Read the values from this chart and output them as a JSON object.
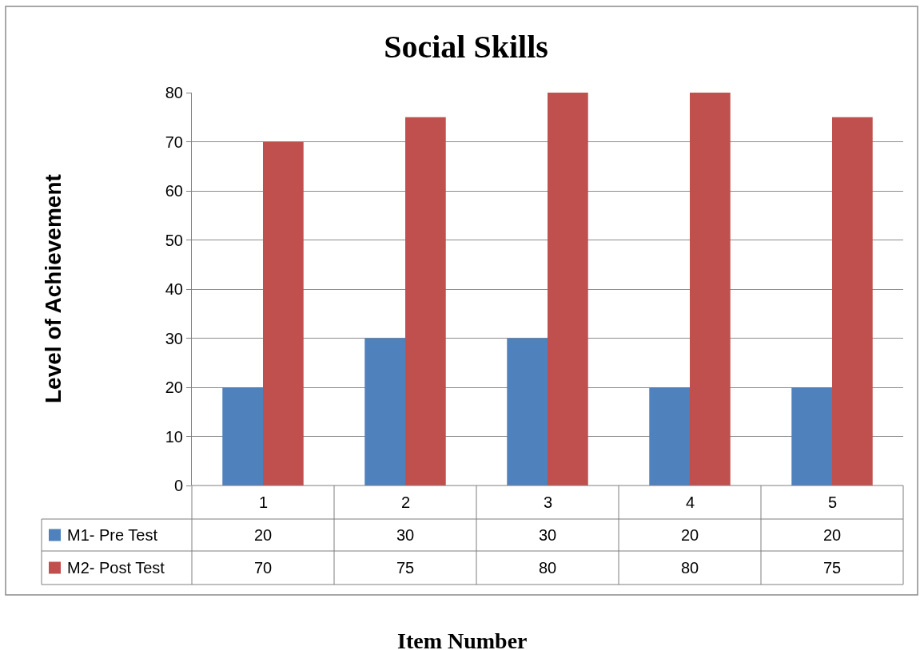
{
  "chart_data": {
    "type": "bar",
    "title": "Social Skills",
    "annotations": [
      "Item Number"
    ],
    "legend": "left",
    "ylabel": "Level of Achievement",
    "categories": [
      "1",
      "2",
      "3",
      "4",
      "5"
    ],
    "series": [
      {
        "name": "M1- Pre Test",
        "color": "#4f81bd",
        "values": [
          20,
          30,
          30,
          20,
          20
        ]
      },
      {
        "name": "M2- Post Test",
        "color": "#c0504d",
        "values": [
          70,
          75,
          80,
          80,
          75
        ]
      }
    ],
    "ylim": [
      0,
      80
    ],
    "yticks": [
      0,
      10,
      20,
      30,
      40,
      50,
      60,
      70,
      80
    ],
    "grid": "y",
    "data_labels": true
  }
}
